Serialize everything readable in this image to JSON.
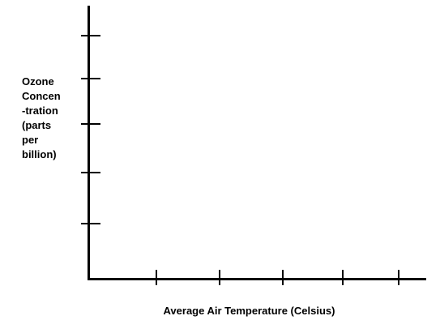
{
  "chart_data": {
    "type": "line",
    "title": "",
    "xlabel": "Average Air Temperature (Celsius)",
    "ylabel_lines": [
      "Ozone",
      "Concen",
      "-tration",
      "(parts",
      "per",
      "billion)"
    ],
    "x_tick_count": 5,
    "y_tick_count": 5,
    "x_tick_labels": [],
    "y_tick_labels": [],
    "series": [],
    "grid": false
  }
}
